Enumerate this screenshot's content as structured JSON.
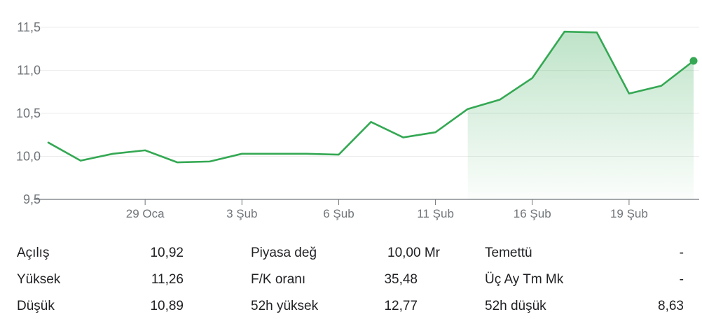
{
  "chart_data": {
    "type": "area",
    "title": "",
    "xlabel": "",
    "ylabel": "",
    "ylim": [
      9.5,
      11.5
    ],
    "yticks": [
      "11,5",
      "11,0",
      "10,5",
      "10,0",
      "9,5"
    ],
    "ytick_values": [
      11.5,
      11.0,
      10.5,
      10.0,
      9.5
    ],
    "xticks": [
      {
        "label": "29 Oca",
        "index": 3
      },
      {
        "label": "3 Şub",
        "index": 6
      },
      {
        "label": "6 Şub",
        "index": 9
      },
      {
        "label": "11 Şub",
        "index": 12
      },
      {
        "label": "16 Şub",
        "index": 15
      },
      {
        "label": "19 Şub",
        "index": 18
      }
    ],
    "grid": true,
    "values": [
      10.16,
      9.95,
      10.03,
      10.07,
      9.93,
      9.94,
      10.03,
      10.03,
      10.03,
      10.02,
      10.4,
      10.22,
      10.28,
      10.55,
      10.66,
      10.91,
      11.45,
      11.44,
      10.73,
      10.82,
      11.11
    ],
    "line_color": "#34a853",
    "highlight_from_index": 13
  },
  "stats": [
    [
      {
        "label": "Açılış",
        "value": "10,92"
      },
      {
        "label": "Piyasa değ",
        "value": "10,00 Mr"
      },
      {
        "label": "Temettü",
        "value": "-"
      }
    ],
    [
      {
        "label": "Yüksek",
        "value": "11,26"
      },
      {
        "label": "F/K oranı",
        "value": "35,48"
      },
      {
        "label": "Üç Ay Tm Mk",
        "value": "-"
      }
    ],
    [
      {
        "label": "Düşük",
        "value": "10,89"
      },
      {
        "label": "52h yüksek",
        "value": "12,77"
      },
      {
        "label": "52h düşük",
        "value": "8,63"
      }
    ]
  ]
}
